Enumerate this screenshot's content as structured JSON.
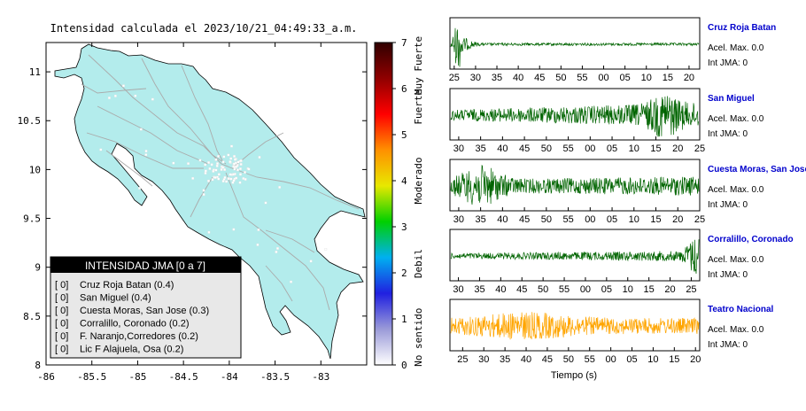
{
  "title": "Intensidad calculada el 2023/10/21_04:49:33_a.m.",
  "map": {
    "x_ticks": [
      "-86",
      "-85.5",
      "-85",
      "-84.5",
      "-84",
      "-83.5",
      "-83"
    ],
    "y_ticks": [
      "11",
      "10.5",
      "10",
      "9.5",
      "9",
      "8.5",
      "8"
    ],
    "xlim": [
      -86,
      -82.5
    ],
    "ylim": [
      8,
      11.3
    ],
    "land_color": "#b3ecec",
    "road_color": "#aaaaaa",
    "legend": {
      "title": "INTENSIDAD JMA [0 a 7]",
      "entries": [
        {
          "intensity": "[ 0]",
          "station": "Cruz Roja Batan (0.4)"
        },
        {
          "intensity": "[ 0]",
          "station": "San Miguel (0.4)"
        },
        {
          "intensity": "[ 0]",
          "station": "Cuesta Moras, San Jose (0.3)"
        },
        {
          "intensity": "[ 0]",
          "station": "Corralillo, Coronado (0.2)"
        },
        {
          "intensity": "[ 0]",
          "station": "F. Naranjo,Corredores (0.2)"
        },
        {
          "intensity": "[ 0]",
          "station": "Lic F Alajuela, Osa (0.2)"
        }
      ]
    }
  },
  "colorbar": {
    "ticks": [
      "0",
      "1",
      "2",
      "3",
      "4",
      "5",
      "6",
      "7"
    ],
    "labels": [
      {
        "text": "No sentido",
        "value": 0.6
      },
      {
        "text": "Debil",
        "value": 2.2
      },
      {
        "text": "Moderado",
        "value": 4.0
      },
      {
        "text": "Fuerte",
        "value": 5.6
      },
      {
        "text": "Muy Fuerte",
        "value": 6.5
      }
    ],
    "colors": [
      "#ffffff",
      "#9a9ad8",
      "#2020e0",
      "#00b0f0",
      "#00d000",
      "#e8e800",
      "#ff9000",
      "#ff0000",
      "#900000",
      "#300000"
    ]
  },
  "chart_data": {
    "type": "line",
    "xlabel": "Tiempo (s)",
    "traces": [
      {
        "station": "Cruz Roja Batan",
        "accel_label": "Acel. Max. 0.0",
        "jma_label": "Int JMA: 0",
        "color": "#006400",
        "tick_labels": [
          "25",
          "30",
          "35",
          "40",
          "45",
          "50",
          "55",
          "00",
          "05",
          "10",
          "15",
          "20"
        ],
        "tick_start": 25,
        "tick_step": 5,
        "x_range": [
          24,
          82.5
        ],
        "label_position": "below",
        "envelope": "early"
      },
      {
        "station": "San Miguel",
        "accel_label": "Acel. Max. 0.0",
        "jma_label": "Int JMA: 0",
        "color": "#006400",
        "tick_labels": [
          "30",
          "35",
          "40",
          "45",
          "50",
          "55",
          "00",
          "05",
          "10",
          "15",
          "20",
          "25"
        ],
        "tick_start": 30,
        "tick_step": 5,
        "x_range": [
          28,
          85
        ],
        "label_position": "below",
        "envelope": "late"
      },
      {
        "station": "Cuesta Moras, San Jose",
        "accel_label": "Acel. Max. 0.0",
        "jma_label": "Int JMA: 0",
        "color": "#006400",
        "tick_labels": [
          "30",
          "35",
          "40",
          "45",
          "50",
          "55",
          "00",
          "05",
          "10",
          "15",
          "20",
          "25"
        ],
        "tick_start": 30,
        "tick_step": 5,
        "x_range": [
          28,
          85
        ],
        "label_position": "below",
        "envelope": "early-strong"
      },
      {
        "station": "Corralillo, Coronado",
        "accel_label": "Acel. Max. 0.0",
        "jma_label": "Int JMA: 0",
        "color": "#006400",
        "tick_labels": [
          "30",
          "35",
          "40",
          "45",
          "50",
          "55",
          "00",
          "05",
          "10",
          "15",
          "20",
          "25"
        ],
        "tick_start": 30,
        "tick_step": 5,
        "x_range": [
          28,
          87
        ],
        "label_position": "below",
        "envelope": "end"
      },
      {
        "station": "Teatro Nacional",
        "accel_label": "Acel. Max. 0.0",
        "jma_label": "Int JMA: 0",
        "color": "#ffa500",
        "tick_labels": [
          "25",
          "30",
          "35",
          "40",
          "45",
          "50",
          "55",
          "00",
          "05",
          "10",
          "15",
          "20"
        ],
        "tick_start": 25,
        "tick_step": 5,
        "x_range": [
          22,
          81
        ],
        "label_position": "below",
        "envelope": "uniform"
      }
    ]
  },
  "station_colors": {
    "title": "#0000cc"
  }
}
